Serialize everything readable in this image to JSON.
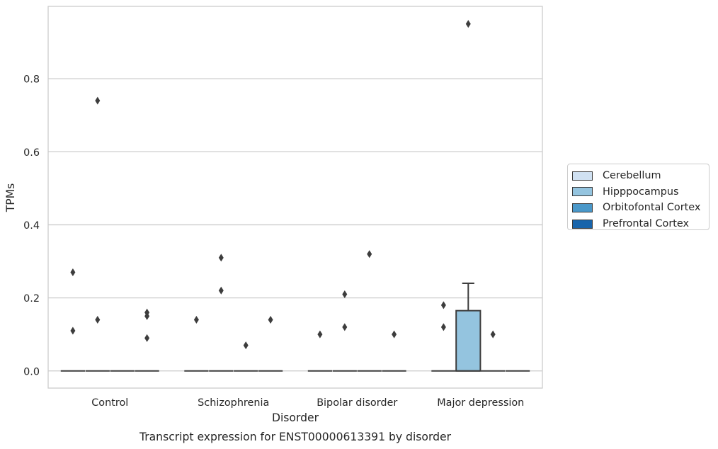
{
  "chart_data": {
    "type": "box",
    "title": "",
    "caption": "Transcript expression for ENST00000613391 by disorder",
    "xlabel": "Disorder",
    "ylabel": "TPMs",
    "categories": [
      "Control",
      "Schizophrenia",
      "Bipolar disorder",
      "Major depression"
    ],
    "yticks": [
      0.0,
      0.2,
      0.4,
      0.6,
      0.8
    ],
    "ytick_labels": [
      "0.0",
      "0.2",
      "0.4",
      "0.6",
      "0.8"
    ],
    "ylim": [
      -0.047,
      0.998
    ],
    "grid": "horizontal",
    "legend_position": "right, outside plot",
    "series": [
      {
        "name": "Cerebellum",
        "color": "#d0e1f2",
        "boxes": [
          {
            "q1": 0,
            "median": 0,
            "q3": 0,
            "whisker_low": 0,
            "whisker_high": 0,
            "outliers": [
              0.27,
              0.11
            ]
          },
          {
            "q1": 0,
            "median": 0,
            "q3": 0,
            "whisker_low": 0,
            "whisker_high": 0,
            "outliers": [
              0.14
            ]
          },
          {
            "q1": 0,
            "median": 0,
            "q3": 0,
            "whisker_low": 0,
            "whisker_high": 0,
            "outliers": [
              0.1
            ]
          },
          {
            "q1": 0,
            "median": 0,
            "q3": 0,
            "whisker_low": 0,
            "whisker_high": 0,
            "outliers": [
              0.18,
              0.12
            ]
          }
        ]
      },
      {
        "name": "Hipppocampus",
        "color": "#94c4df",
        "boxes": [
          {
            "q1": 0,
            "median": 0,
            "q3": 0,
            "whisker_low": 0,
            "whisker_high": 0,
            "outliers": [
              0.74,
              0.14
            ]
          },
          {
            "q1": 0,
            "median": 0,
            "q3": 0,
            "whisker_low": 0,
            "whisker_high": 0,
            "outliers": [
              0.31,
              0.22
            ]
          },
          {
            "q1": 0,
            "median": 0,
            "q3": 0,
            "whisker_low": 0,
            "whisker_high": 0,
            "outliers": [
              0.21,
              0.12
            ]
          },
          {
            "q1": 0,
            "median": 0,
            "q3": 0.165,
            "whisker_low": 0,
            "whisker_high": 0.24,
            "outliers": [
              0.95
            ]
          }
        ]
      },
      {
        "name": "Orbitofontal Cortex",
        "color": "#4a98c9",
        "boxes": [
          {
            "q1": 0,
            "median": 0,
            "q3": 0,
            "whisker_low": 0,
            "whisker_high": 0,
            "outliers": []
          },
          {
            "q1": 0,
            "median": 0,
            "q3": 0,
            "whisker_low": 0,
            "whisker_high": 0,
            "outliers": [
              0.07
            ]
          },
          {
            "q1": 0,
            "median": 0,
            "q3": 0,
            "whisker_low": 0,
            "whisker_high": 0,
            "outliers": [
              0.32
            ]
          },
          {
            "q1": 0,
            "median": 0,
            "q3": 0,
            "whisker_low": 0,
            "whisker_high": 0,
            "outliers": [
              0.1
            ]
          }
        ]
      },
      {
        "name": "Prefrontal Cortex",
        "color": "#1764ab",
        "boxes": [
          {
            "q1": 0,
            "median": 0,
            "q3": 0,
            "whisker_low": 0,
            "whisker_high": 0,
            "outliers": [
              0.16,
              0.15,
              0.09
            ]
          },
          {
            "q1": 0,
            "median": 0,
            "q3": 0,
            "whisker_low": 0,
            "whisker_high": 0,
            "outliers": [
              0.14
            ]
          },
          {
            "q1": 0,
            "median": 0,
            "q3": 0,
            "whisker_low": 0,
            "whisker_high": 0,
            "outliers": [
              0.1
            ]
          },
          {
            "q1": 0,
            "median": 0,
            "q3": 0,
            "whisker_low": 0,
            "whisker_high": 0,
            "outliers": []
          }
        ]
      }
    ]
  }
}
